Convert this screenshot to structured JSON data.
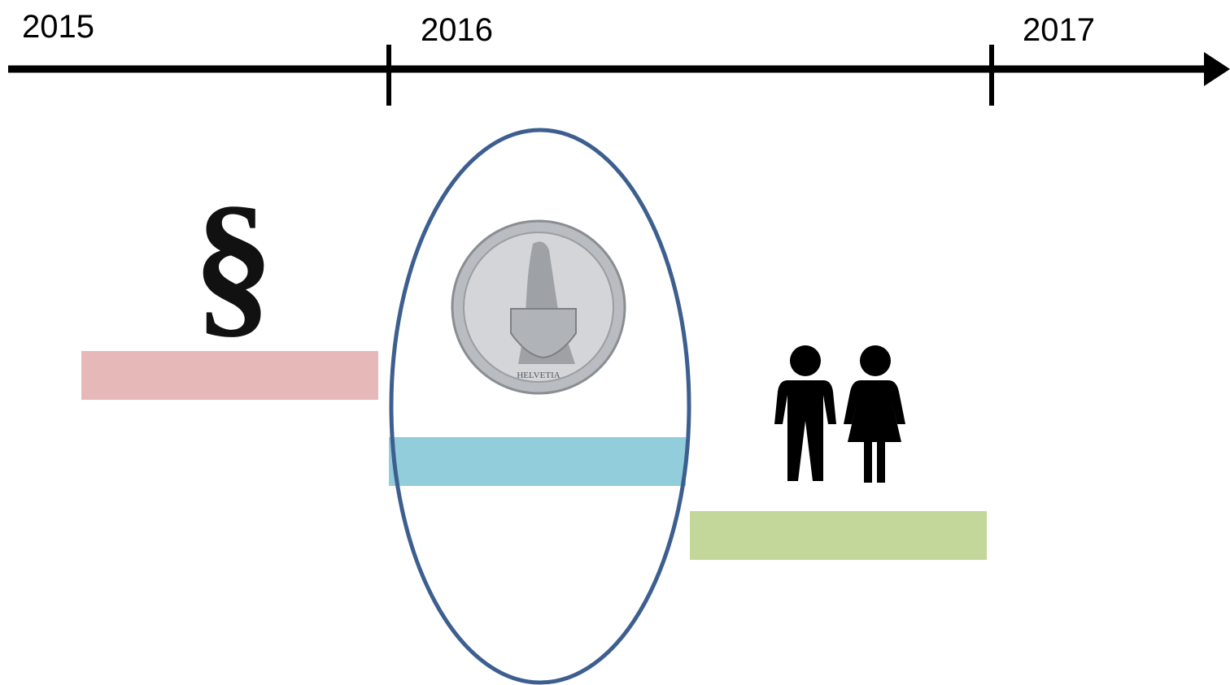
{
  "timeline": {
    "years": [
      "2015",
      "2016",
      "2017"
    ]
  },
  "icons": {
    "section": "§",
    "coin": "HELVETIA"
  }
}
